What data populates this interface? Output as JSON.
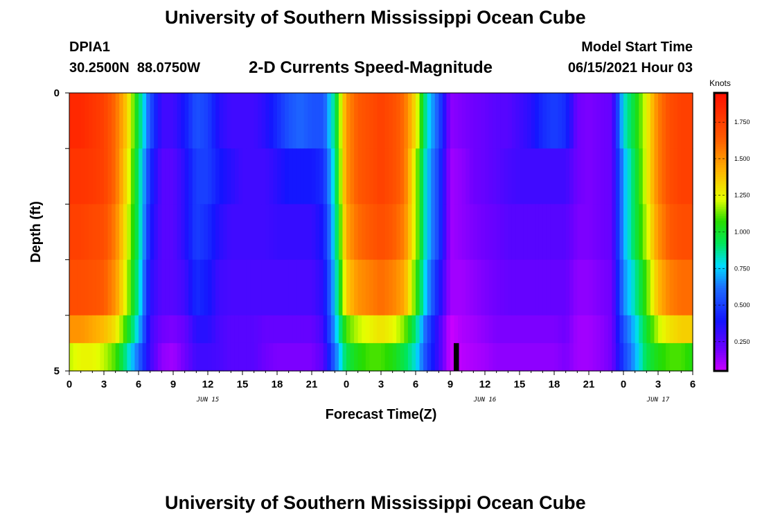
{
  "header": {
    "title": "University of Southern Mississippi Ocean Cube",
    "station_id": "DPIA1",
    "coordinates": "30.2500N  88.0750W",
    "model_start_label": "Model Start Time",
    "model_start_value": "06/15/2021 Hour 03"
  },
  "footer": {
    "title": "University of Southern Mississippi Ocean Cube"
  },
  "chart_data": {
    "type": "heatmap",
    "title": "2-D Currents Speed-Magnitude",
    "xlabel": "Forecast Time(Z)",
    "ylabel": "Depth (ft)",
    "x_range_hours": [
      0,
      54
    ],
    "y_range_ft": [
      0,
      5
    ],
    "y_reversed": true,
    "x_tick_labels": [
      "0",
      "3",
      "6",
      "9",
      "12",
      "15",
      "18",
      "21",
      "0",
      "3",
      "6",
      "9",
      "12",
      "15",
      "18",
      "21",
      "0",
      "3",
      "6"
    ],
    "y_tick_labels": [
      "0",
      "5"
    ],
    "date_labels": [
      {
        "text": "JUN 15",
        "hour": 12
      },
      {
        "text": "JUN 16",
        "hour": 36
      },
      {
        "text": "JUN 17",
        "hour": 51
      }
    ],
    "colorbar": {
      "unit": "Knots",
      "min": 0.05,
      "max": 1.95,
      "tick_labels": [
        "0.250",
        "0.500",
        "0.750",
        "1.000",
        "1.250",
        "1.500",
        "1.750"
      ],
      "tick_values": [
        0.25,
        0.5,
        0.75,
        1.0,
        1.25,
        1.5,
        1.75
      ]
    },
    "depth_layers_ft": [
      0.0,
      0.5,
      1.5,
      2.5,
      3.5,
      4.5
    ],
    "hours": [
      0,
      1,
      2,
      3,
      4,
      5,
      6,
      7,
      8,
      9,
      10,
      11,
      12,
      13,
      14,
      15,
      16,
      17,
      18,
      19,
      20,
      21,
      22,
      23,
      24,
      25,
      26,
      27,
      28,
      29,
      30,
      31,
      32,
      33,
      34,
      35,
      36,
      37,
      38,
      39,
      40,
      41,
      42,
      43,
      44,
      45,
      46,
      47,
      48,
      49,
      50,
      51,
      52,
      53,
      54
    ],
    "speed_knots": [
      [
        1.85,
        1.85,
        1.8,
        1.75,
        1.6,
        1.35,
        0.95,
        0.55,
        0.3,
        0.3,
        0.4,
        0.55,
        0.5,
        0.35,
        0.3,
        0.3,
        0.3,
        0.35,
        0.45,
        0.55,
        0.6,
        0.55,
        0.55,
        0.9,
        1.5,
        1.65,
        1.7,
        1.75,
        1.7,
        1.6,
        1.3,
        0.8,
        0.55,
        0.15,
        0.18,
        0.2,
        0.22,
        0.25,
        0.25,
        0.3,
        0.35,
        0.45,
        0.5,
        0.45,
        0.2,
        0.18,
        0.2,
        0.22,
        0.8,
        1.0,
        1.25,
        1.55,
        1.7,
        1.75,
        1.75
      ],
      [
        1.8,
        1.8,
        1.78,
        1.75,
        1.6,
        1.3,
        0.9,
        0.45,
        0.25,
        0.25,
        0.35,
        0.5,
        0.5,
        0.4,
        0.35,
        0.3,
        0.3,
        0.3,
        0.35,
        0.4,
        0.4,
        0.4,
        0.45,
        0.85,
        1.5,
        1.65,
        1.7,
        1.75,
        1.7,
        1.6,
        1.2,
        0.75,
        0.5,
        0.12,
        0.15,
        0.2,
        0.22,
        0.25,
        0.28,
        0.3,
        0.3,
        0.3,
        0.3,
        0.3,
        0.2,
        0.18,
        0.2,
        0.22,
        0.7,
        0.95,
        1.25,
        1.55,
        1.7,
        1.75,
        1.75
      ],
      [
        1.75,
        1.75,
        1.72,
        1.7,
        1.55,
        1.25,
        0.9,
        0.4,
        0.25,
        0.25,
        0.35,
        0.5,
        0.45,
        0.35,
        0.3,
        0.3,
        0.3,
        0.3,
        0.32,
        0.32,
        0.32,
        0.32,
        0.4,
        0.8,
        1.45,
        1.6,
        1.65,
        1.7,
        1.65,
        1.55,
        1.2,
        0.75,
        0.5,
        0.12,
        0.15,
        0.18,
        0.2,
        0.22,
        0.25,
        0.25,
        0.25,
        0.25,
        0.25,
        0.25,
        0.18,
        0.18,
        0.2,
        0.22,
        0.7,
        0.95,
        1.2,
        1.5,
        1.65,
        1.7,
        1.7
      ],
      [
        1.7,
        1.7,
        1.68,
        1.65,
        1.5,
        1.2,
        0.85,
        0.35,
        0.25,
        0.25,
        0.3,
        0.45,
        0.4,
        0.3,
        0.28,
        0.28,
        0.28,
        0.28,
        0.28,
        0.28,
        0.28,
        0.28,
        0.35,
        0.75,
        1.35,
        1.5,
        1.55,
        1.6,
        1.55,
        1.45,
        1.1,
        0.7,
        0.4,
        0.12,
        0.12,
        0.15,
        0.18,
        0.2,
        0.22,
        0.22,
        0.22,
        0.22,
        0.22,
        0.22,
        0.15,
        0.15,
        0.18,
        0.2,
        0.65,
        0.85,
        1.1,
        1.4,
        1.55,
        1.6,
        1.6
      ],
      [
        1.5,
        1.5,
        1.45,
        1.4,
        1.3,
        1.05,
        0.75,
        0.3,
        0.2,
        0.18,
        0.22,
        0.35,
        0.35,
        0.28,
        0.25,
        0.25,
        0.25,
        0.22,
        0.22,
        0.22,
        0.22,
        0.22,
        0.3,
        0.7,
        1.1,
        1.2,
        1.25,
        1.3,
        1.25,
        1.15,
        0.9,
        0.55,
        0.3,
        0.05,
        0.1,
        0.12,
        0.15,
        0.18,
        0.18,
        0.18,
        0.18,
        0.18,
        0.18,
        0.2,
        0.12,
        0.12,
        0.15,
        0.2,
        0.55,
        0.75,
        1.0,
        1.2,
        1.3,
        1.35,
        1.35
      ],
      [
        1.2,
        1.25,
        1.25,
        1.2,
        1.1,
        0.85,
        0.6,
        0.3,
        0.15,
        0.12,
        0.2,
        0.3,
        0.3,
        0.28,
        0.25,
        0.25,
        0.25,
        0.2,
        0.18,
        0.18,
        0.18,
        0.18,
        0.25,
        0.6,
        0.95,
        1.05,
        1.1,
        1.1,
        1.05,
        0.95,
        0.8,
        0.5,
        0.3,
        0.05,
        0.08,
        0.1,
        0.12,
        0.15,
        0.15,
        0.15,
        0.15,
        0.15,
        0.15,
        0.18,
        0.12,
        0.12,
        0.15,
        0.2,
        0.5,
        0.7,
        0.95,
        1.05,
        1.1,
        1.1,
        1.05
      ]
    ],
    "missing_cells": [
      {
        "hour": 33.5,
        "depth_ft": 4.5
      }
    ]
  }
}
